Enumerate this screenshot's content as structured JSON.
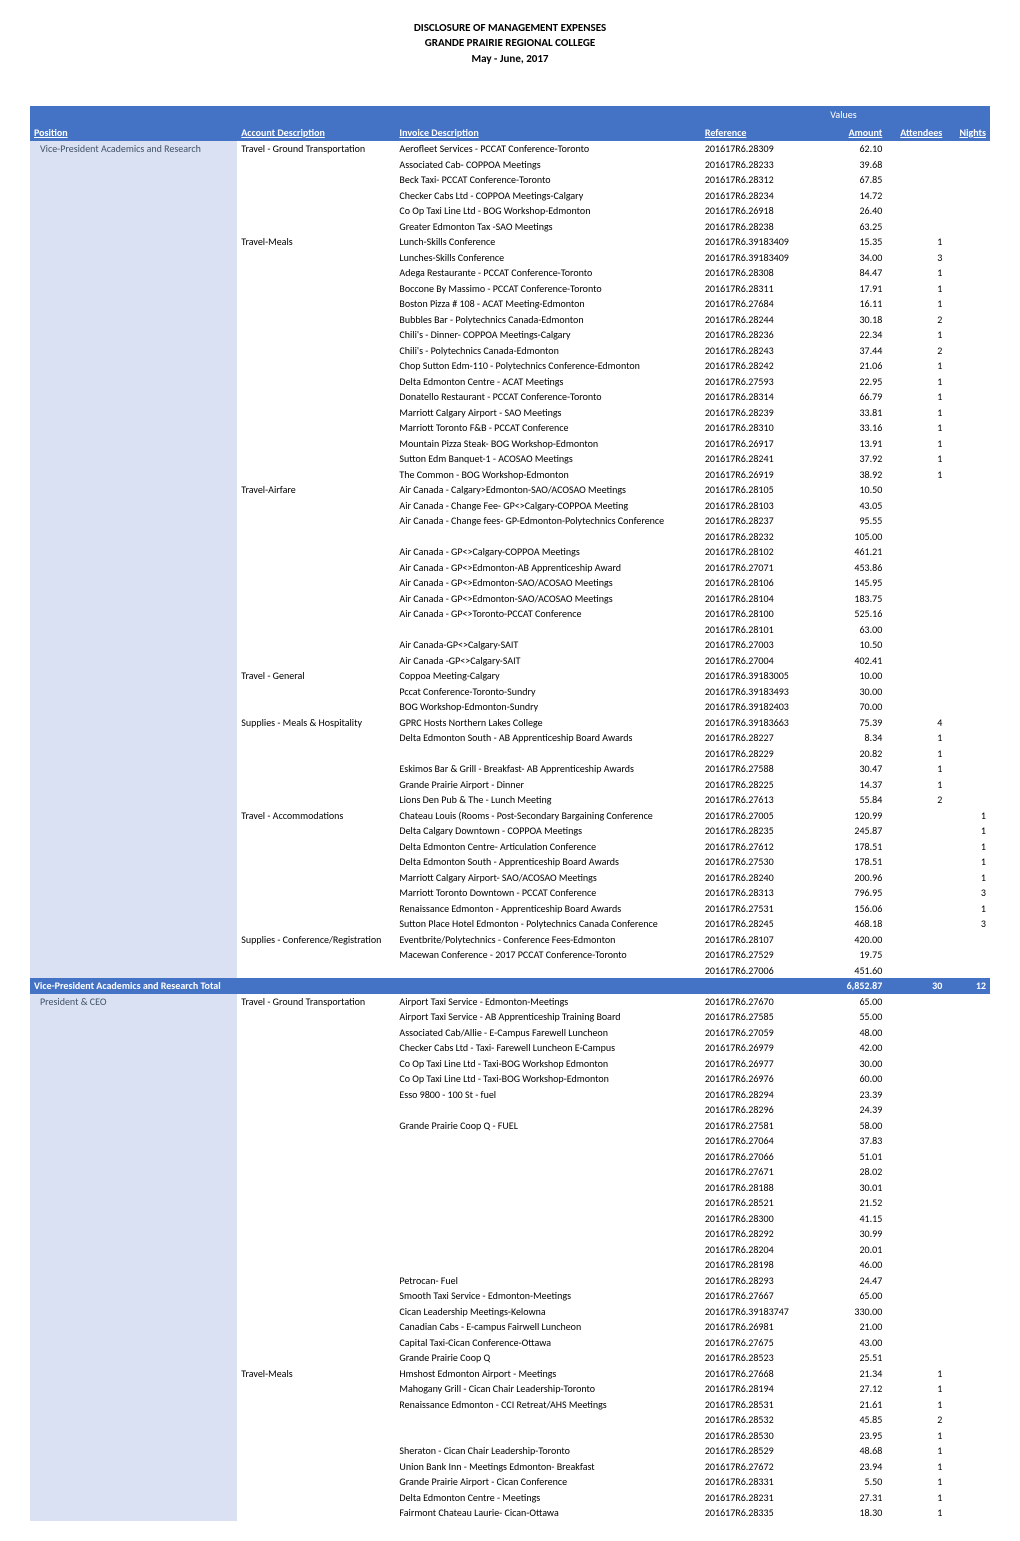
{
  "header": {
    "line1": "DISCLOSURE OF MANAGEMENT EXPENSES",
    "line2": "GRANDE PRAIRIE REGIONAL COLLEGE",
    "line3": "May - June, 2017"
  },
  "values_label": "Values",
  "columns": {
    "position": "Position",
    "account": "Account Description",
    "invoice": "Invoice Description",
    "reference": "Reference",
    "amount": "Amount",
    "attendees": "Attendees",
    "nights": "Nights"
  },
  "sections": [
    {
      "position": "Vice-President Academics and Research",
      "groups": [
        {
          "account": "Travel - Ground Transportation",
          "rows": [
            {
              "desc": "Aerofleet Services - PCCAT Conference-Toronto",
              "ref": "201617R6.28309",
              "amt": "62.10",
              "att": "",
              "ngt": ""
            },
            {
              "desc": "Associated Cab- COPPOA Meetings",
              "ref": "201617R6.28233",
              "amt": "39.68",
              "att": "",
              "ngt": ""
            },
            {
              "desc": "Beck Taxi- PCCAT Conference-Toronto",
              "ref": "201617R6.28312",
              "amt": "67.85",
              "att": "",
              "ngt": ""
            },
            {
              "desc": "Checker Cabs Ltd - COPPOA Meetings-Calgary",
              "ref": "201617R6.28234",
              "amt": "14.72",
              "att": "",
              "ngt": ""
            },
            {
              "desc": "Co Op Taxi Line Ltd - BOG Workshop-Edmonton",
              "ref": "201617R6.26918",
              "amt": "26.40",
              "att": "",
              "ngt": ""
            },
            {
              "desc": "Greater Edmonton Tax -SAO Meetings",
              "ref": "201617R6.28238",
              "amt": "63.25",
              "att": "",
              "ngt": ""
            }
          ]
        },
        {
          "account": "Travel-Meals",
          "rows": [
            {
              "desc": "Lunch-Skills Conference",
              "ref": "201617R6.39183409",
              "amt": "15.35",
              "att": "1",
              "ngt": ""
            },
            {
              "desc": "Lunches-Skills Conference",
              "ref": "201617R6.39183409",
              "amt": "34.00",
              "att": "3",
              "ngt": ""
            },
            {
              "desc": "Adega Restaurante - PCCAT Conference-Toronto",
              "ref": "201617R6.28308",
              "amt": "84.47",
              "att": "1",
              "ngt": ""
            },
            {
              "desc": "Boccone By Massimo - PCCAT Conference-Toronto",
              "ref": "201617R6.28311",
              "amt": "17.91",
              "att": "1",
              "ngt": ""
            },
            {
              "desc": "Boston Pizza # 108 - ACAT Meeting-Edmonton",
              "ref": "201617R6.27684",
              "amt": "16.11",
              "att": "1",
              "ngt": ""
            },
            {
              "desc": "Bubbles Bar - Polytechnics Canada-Edmonton",
              "ref": "201617R6.28244",
              "amt": "30.18",
              "att": "2",
              "ngt": ""
            },
            {
              "desc": "Chili's - Dinner- COPPOA Meetings-Calgary",
              "ref": "201617R6.28236",
              "amt": "22.34",
              "att": "1",
              "ngt": ""
            },
            {
              "desc": "Chili's - Polytechnics Canada-Edmonton",
              "ref": "201617R6.28243",
              "amt": "37.44",
              "att": "2",
              "ngt": ""
            },
            {
              "desc": "Chop Sutton Edm-110 - Polytechnics Conference-Edmonton",
              "ref": "201617R6.28242",
              "amt": "21.06",
              "att": "1",
              "ngt": ""
            },
            {
              "desc": "Delta Edmonton Centre - ACAT Meetings",
              "ref": "201617R6.27593",
              "amt": "22.95",
              "att": "1",
              "ngt": ""
            },
            {
              "desc": "Donatello Restaurant - PCCAT Conference-Toronto",
              "ref": "201617R6.28314",
              "amt": "66.79",
              "att": "1",
              "ngt": ""
            },
            {
              "desc": "Marriott Calgary Airport - SAO Meetings",
              "ref": "201617R6.28239",
              "amt": "33.81",
              "att": "1",
              "ngt": ""
            },
            {
              "desc": "Marriott Toronto F&B - PCCAT Conference",
              "ref": "201617R6.28310",
              "amt": "33.16",
              "att": "1",
              "ngt": ""
            },
            {
              "desc": "Mountain Pizza  Steak- BOG Workshop-Edmonton",
              "ref": "201617R6.26917",
              "amt": "13.91",
              "att": "1",
              "ngt": ""
            },
            {
              "desc": "Sutton Edm Banquet-1 - ACOSAO Meetings",
              "ref": "201617R6.28241",
              "amt": "37.92",
              "att": "1",
              "ngt": ""
            },
            {
              "desc": "The Common - BOG Workshop-Edmonton",
              "ref": "201617R6.26919",
              "amt": "38.92",
              "att": "1",
              "ngt": ""
            }
          ]
        },
        {
          "account": "Travel-Airfare",
          "rows": [
            {
              "desc": "Air Canada - Calgary>Edmonton-SAO/ACOSAO Meetings",
              "ref": "201617R6.28105",
              "amt": "10.50",
              "att": "",
              "ngt": ""
            },
            {
              "desc": "Air Canada - Change Fee- GP<>Calgary-COPPOA Meeting",
              "ref": "201617R6.28103",
              "amt": "43.05",
              "att": "",
              "ngt": ""
            },
            {
              "desc": "Air Canada - Change fees- GP-Edmonton-Polytechnics Conference",
              "ref": "201617R6.28237",
              "amt": "95.55",
              "att": "",
              "ngt": ""
            },
            {
              "desc": "",
              "ref": "201617R6.28232",
              "amt": "105.00",
              "att": "",
              "ngt": ""
            },
            {
              "desc": "Air Canada - GP<>Calgary-COPPOA Meetings",
              "ref": "201617R6.28102",
              "amt": "461.21",
              "att": "",
              "ngt": ""
            },
            {
              "desc": "Air Canada - GP<>Edmonton-AB Apprenticeship Award",
              "ref": "201617R6.27071",
              "amt": "453.86",
              "att": "",
              "ngt": ""
            },
            {
              "desc": "Air Canada - GP<>Edmonton-SAO/ACOSAO Meetings",
              "ref": "201617R6.28106",
              "amt": "145.95",
              "att": "",
              "ngt": ""
            },
            {
              "desc": "Air Canada - GP<>Edmonton-SAO/ACOSAO Meetings",
              "ref": "201617R6.28104",
              "amt": "183.75",
              "att": "",
              "ngt": ""
            },
            {
              "desc": "Air Canada - GP<>Toronto-PCCAT Conference",
              "ref": "201617R6.28100",
              "amt": "525.16",
              "att": "",
              "ngt": ""
            },
            {
              "desc": "",
              "ref": "201617R6.28101",
              "amt": "63.00",
              "att": "",
              "ngt": ""
            },
            {
              "desc": "Air Canada-GP<>Calgary-SAIT",
              "ref": "201617R6.27003",
              "amt": "10.50",
              "att": "",
              "ngt": ""
            },
            {
              "desc": "Air Canada -GP<>Calgary-SAIT",
              "ref": "201617R6.27004",
              "amt": "402.41",
              "att": "",
              "ngt": ""
            }
          ]
        },
        {
          "account": "Travel - General",
          "rows": [
            {
              "desc": "Coppoa Meeting-Calgary",
              "ref": "201617R6.39183005",
              "amt": "10.00",
              "att": "",
              "ngt": ""
            },
            {
              "desc": "Pccat Conference-Toronto-Sundry",
              "ref": "201617R6.39183493",
              "amt": "30.00",
              "att": "",
              "ngt": ""
            },
            {
              "desc": "BOG Workshop-Edmonton-Sundry",
              "ref": "201617R6.39182403",
              "amt": "70.00",
              "att": "",
              "ngt": ""
            }
          ]
        },
        {
          "account": "Supplies - Meals & Hospitality",
          "rows": [
            {
              "desc": "GPRC Hosts Northern Lakes College",
              "ref": "201617R6.39183663",
              "amt": "75.39",
              "att": "4",
              "ngt": ""
            },
            {
              "desc": "Delta Edmonton South - AB Apprenticeship Board Awards",
              "ref": "201617R6.28227",
              "amt": "8.34",
              "att": "1",
              "ngt": ""
            },
            {
              "desc": "",
              "ref": "201617R6.28229",
              "amt": "20.82",
              "att": "1",
              "ngt": ""
            },
            {
              "desc": "Eskimos Bar & Grill - Breakfast- AB Apprenticeship Awards",
              "ref": "201617R6.27588",
              "amt": "30.47",
              "att": "1",
              "ngt": ""
            },
            {
              "desc": "Grande Prairie Airport - Dinner",
              "ref": "201617R6.28225",
              "amt": "14.37",
              "att": "1",
              "ngt": ""
            },
            {
              "desc": "Lions Den Pub & The - Lunch Meeting",
              "ref": "201617R6.27613",
              "amt": "55.84",
              "att": "2",
              "ngt": ""
            }
          ]
        },
        {
          "account": "Travel - Accommodations",
          "rows": [
            {
              "desc": "Chateau Louis (Rooms - Post-Secondary Bargaining Conference",
              "ref": "201617R6.27005",
              "amt": "120.99",
              "att": "",
              "ngt": "1"
            },
            {
              "desc": "Delta Calgary Downtown - COPPOA Meetings",
              "ref": "201617R6.28235",
              "amt": "245.87",
              "att": "",
              "ngt": "1"
            },
            {
              "desc": "Delta Edmonton Centre- Articulation Conference",
              "ref": "201617R6.27612",
              "amt": "178.51",
              "att": "",
              "ngt": "1"
            },
            {
              "desc": "Delta Edmonton South - Apprenticeship Board Awards",
              "ref": "201617R6.27530",
              "amt": "178.51",
              "att": "",
              "ngt": "1"
            },
            {
              "desc": "Marriott Calgary Airport- SAO/ACOSAO Meetings",
              "ref": "201617R6.28240",
              "amt": "200.96",
              "att": "",
              "ngt": "1"
            },
            {
              "desc": "Marriott Toronto Downtown - PCCAT Conference",
              "ref": "201617R6.28313",
              "amt": "796.95",
              "att": "",
              "ngt": "3"
            },
            {
              "desc": "Renaissance Edmonton - Apprenticeship Board Awards",
              "ref": "201617R6.27531",
              "amt": "156.06",
              "att": "",
              "ngt": "1"
            },
            {
              "desc": "Sutton Place Hotel Edmonton - Polytechnics Canada Conference",
              "ref": "201617R6.28245",
              "amt": "468.18",
              "att": "",
              "ngt": "3"
            }
          ]
        },
        {
          "account": "Supplies - Conference/Registration",
          "rows": [
            {
              "desc": "Eventbrite/Polytechnics - Conference Fees-Edmonton",
              "ref": "201617R6.28107",
              "amt": "420.00",
              "att": "",
              "ngt": ""
            },
            {
              "desc": "Macewan Conference - 2017 PCCAT Conference-Toronto",
              "ref": "201617R6.27529",
              "amt": "19.75",
              "att": "",
              "ngt": ""
            },
            {
              "desc": "",
              "ref": "201617R6.27006",
              "amt": "451.60",
              "att": "",
              "ngt": ""
            }
          ]
        }
      ],
      "total": {
        "label": "Vice-President Academics and Research Total",
        "amt": "6,852.87",
        "att": "30",
        "ngt": "12"
      }
    },
    {
      "position": "President & CEO",
      "groups": [
        {
          "account": "Travel - Ground Transportation",
          "rows": [
            {
              "desc": "Airport Taxi Service - Edmonton-Meetings",
              "ref": "201617R6.27670",
              "amt": "65.00",
              "att": "",
              "ngt": ""
            },
            {
              "desc": "Airport Taxi Service - AB Apprenticeship Training Board",
              "ref": "201617R6.27585",
              "amt": "55.00",
              "att": "",
              "ngt": ""
            },
            {
              "desc": "Associated Cab/Allie - E-Campus Farewell Luncheon",
              "ref": "201617R6.27059",
              "amt": "48.00",
              "att": "",
              "ngt": ""
            },
            {
              "desc": "Checker Cabs Ltd - Taxi- Farewell Luncheon E-Campus",
              "ref": "201617R6.26979",
              "amt": "42.00",
              "att": "",
              "ngt": ""
            },
            {
              "desc": "Co Op Taxi Line Ltd - Taxi-BOG Workshop Edmonton",
              "ref": "201617R6.26977",
              "amt": "30.00",
              "att": "",
              "ngt": ""
            },
            {
              "desc": "Co Op Taxi Line Ltd - Taxi-BOG Workshop-Edmonton",
              "ref": "201617R6.26976",
              "amt": "60.00",
              "att": "",
              "ngt": ""
            },
            {
              "desc": "Esso 9800 - 100 St - fuel",
              "ref": "201617R6.28294",
              "amt": "23.39",
              "att": "",
              "ngt": ""
            },
            {
              "desc": "",
              "ref": "201617R6.28296",
              "amt": "24.39",
              "att": "",
              "ngt": ""
            },
            {
              "desc": "Grande Prairie Coop    Q - FUEL",
              "ref": "201617R6.27581",
              "amt": "58.00",
              "att": "",
              "ngt": ""
            },
            {
              "desc": "",
              "ref": "201617R6.27064",
              "amt": "37.83",
              "att": "",
              "ngt": ""
            },
            {
              "desc": "",
              "ref": "201617R6.27066",
              "amt": "51.01",
              "att": "",
              "ngt": ""
            },
            {
              "desc": "",
              "ref": "201617R6.27671",
              "amt": "28.02",
              "att": "",
              "ngt": ""
            },
            {
              "desc": "",
              "ref": "201617R6.28188",
              "amt": "30.01",
              "att": "",
              "ngt": ""
            },
            {
              "desc": "",
              "ref": "201617R6.28521",
              "amt": "21.52",
              "att": "",
              "ngt": ""
            },
            {
              "desc": "",
              "ref": "201617R6.28300",
              "amt": "41.15",
              "att": "",
              "ngt": ""
            },
            {
              "desc": "",
              "ref": "201617R6.28292",
              "amt": "30.99",
              "att": "",
              "ngt": ""
            },
            {
              "desc": "",
              "ref": "201617R6.28204",
              "amt": "20.01",
              "att": "",
              "ngt": ""
            },
            {
              "desc": "",
              "ref": "201617R6.28198",
              "amt": "46.00",
              "att": "",
              "ngt": ""
            },
            {
              "desc": "Petrocan- Fuel",
              "ref": "201617R6.28293",
              "amt": "24.47",
              "att": "",
              "ngt": ""
            },
            {
              "desc": "Smooth Taxi Service - Edmonton-Meetings",
              "ref": "201617R6.27667",
              "amt": "65.00",
              "att": "",
              "ngt": ""
            },
            {
              "desc": "Cican Leadership Meetings-Kelowna",
              "ref": "201617R6.39183747",
              "amt": "330.00",
              "att": "",
              "ngt": ""
            },
            {
              "desc": "Canadian Cabs - E-campus Fairwell Luncheon",
              "ref": "201617R6.26981",
              "amt": "21.00",
              "att": "",
              "ngt": ""
            },
            {
              "desc": "Capital Taxi-Cican Conference-Ottawa",
              "ref": "201617R6.27675",
              "amt": "43.00",
              "att": "",
              "ngt": ""
            },
            {
              "desc": "Grande Prairie Coop    Q",
              "ref": "201617R6.28523",
              "amt": "25.51",
              "att": "",
              "ngt": ""
            }
          ]
        },
        {
          "account": "Travel-Meals",
          "rows": [
            {
              "desc": "Hmshost Edmonton Airport - Meetings",
              "ref": "201617R6.27668",
              "amt": "21.34",
              "att": "1",
              "ngt": ""
            },
            {
              "desc": "Mahogany Grill - Cican Chair Leadership-Toronto",
              "ref": "201617R6.28194",
              "amt": "27.12",
              "att": "1",
              "ngt": ""
            },
            {
              "desc": "Renaissance Edmonton - CCI Retreat/AHS Meetings",
              "ref": "201617R6.28531",
              "amt": "21.61",
              "att": "1",
              "ngt": ""
            },
            {
              "desc": "",
              "ref": "201617R6.28532",
              "amt": "45.85",
              "att": "2",
              "ngt": ""
            },
            {
              "desc": "",
              "ref": "201617R6.28530",
              "amt": "23.95",
              "att": "1",
              "ngt": ""
            },
            {
              "desc": "Sheraton - Cican Chair Leadership-Toronto",
              "ref": "201617R6.28529",
              "amt": "48.68",
              "att": "1",
              "ngt": ""
            },
            {
              "desc": "Union Bank Inn - Meetings Edmonton- Breakfast",
              "ref": "201617R6.27672",
              "amt": "23.94",
              "att": "1",
              "ngt": ""
            },
            {
              "desc": "Grande Prairie Airport - Cican Conference",
              "ref": "201617R6.28331",
              "amt": "5.50",
              "att": "1",
              "ngt": ""
            },
            {
              "desc": "Delta Edmonton Centre - Meetings",
              "ref": "201617R6.28231",
              "amt": "27.31",
              "att": "1",
              "ngt": ""
            },
            {
              "desc": "Fairmont Chateau Laurie- Cican-Ottawa",
              "ref": "201617R6.28335",
              "amt": "18.30",
              "att": "1",
              "ngt": ""
            }
          ]
        }
      ]
    }
  ]
}
